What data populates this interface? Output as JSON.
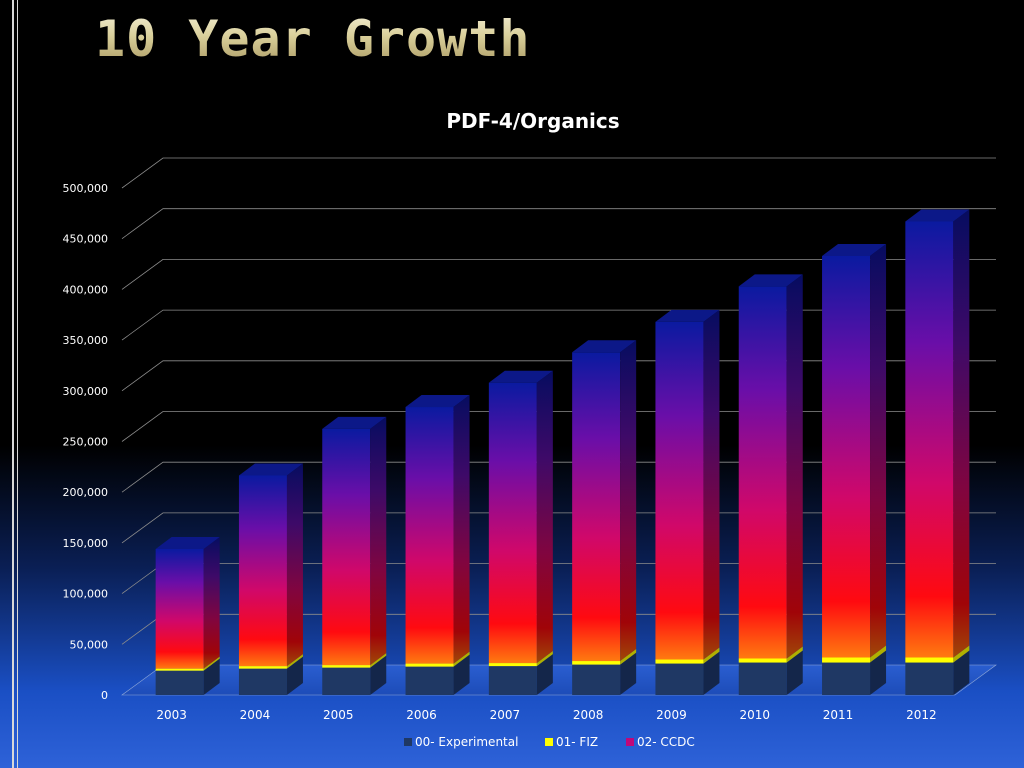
{
  "slide_title": "10 Year Growth",
  "chart_data": {
    "type": "bar",
    "stacked": true,
    "three_d": true,
    "title": "PDF-4/Organics",
    "xlabel": "",
    "ylabel": "",
    "categories": [
      "2003",
      "2004",
      "2005",
      "2006",
      "2007",
      "2008",
      "2009",
      "2010",
      "2011",
      "2012"
    ],
    "series": [
      {
        "name": "00- Experimental",
        "color": "#1f3864",
        "values": [
          24000,
          26000,
          27000,
          28000,
          28500,
          30000,
          31000,
          32000,
          32000,
          32000
        ]
      },
      {
        "name": "01- FIZ",
        "color": "#ffff00",
        "values": [
          2000,
          2500,
          2500,
          3000,
          3000,
          3500,
          4000,
          4000,
          5000,
          5000
        ]
      },
      {
        "name": "02- CCDC",
        "color": "#8b0a8c",
        "values": [
          118000,
          188000,
          233000,
          253000,
          276500,
          304500,
          333000,
          367000,
          396000,
          430000
        ]
      }
    ],
    "ylim": [
      0,
      500000
    ],
    "ytick_labels": [
      "0",
      "50,000",
      "100,000",
      "150,000",
      "200,000",
      "250,000",
      "300,000",
      "350,000",
      "400,000",
      "450,000",
      "500,000"
    ],
    "grid": true,
    "legend_position": "bottom"
  }
}
